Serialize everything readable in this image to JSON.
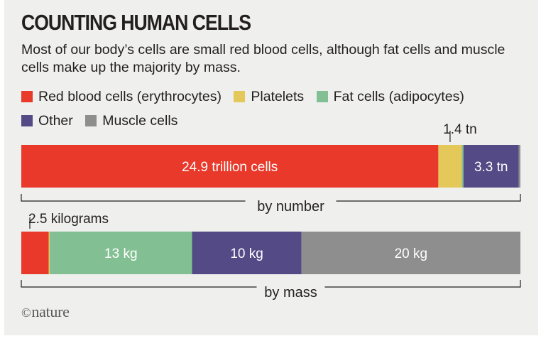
{
  "header": {
    "title": "COUNTING HUMAN CELLS",
    "subtitle": "Most of our body’s cells are small red blood cells, although fat cells and muscle cells make up the majority by mass."
  },
  "legend": {
    "items": [
      {
        "label": "Red blood cells (erythrocytes)",
        "color": "#e8392b"
      },
      {
        "label": "Platelets",
        "color": "#e4c85a"
      },
      {
        "label": "Fat cells (adipocytes)",
        "color": "#82bf93"
      },
      {
        "label": "Other",
        "color": "#544a86"
      },
      {
        "label": "Muscle cells",
        "color": "#8e8e8e"
      }
    ]
  },
  "chart_data": [
    {
      "type": "bar",
      "orientation": "horizontal-stacked",
      "axis_label": "by number",
      "units": "trillion cells",
      "series": [
        {
          "name": "Red blood cells (erythrocytes)",
          "value": 24.9,
          "label": "24.9 trillion cells"
        },
        {
          "name": "Platelets",
          "value": 1.4,
          "label": "1.4 tn"
        },
        {
          "name": "Fat cells (adipocytes)",
          "value": 0.1,
          "label": ""
        },
        {
          "name": "Other",
          "value": 3.3,
          "label": "3.3 tn"
        },
        {
          "name": "Muscle cells",
          "value": 0.1,
          "label": ""
        }
      ]
    },
    {
      "type": "bar",
      "orientation": "horizontal-stacked",
      "axis_label": "by mass",
      "units": "kg",
      "series": [
        {
          "name": "Red blood cells (erythrocytes)",
          "value": 2.5,
          "label": "2.5 kilograms"
        },
        {
          "name": "Platelets",
          "value": 0.1,
          "label": ""
        },
        {
          "name": "Fat cells (adipocytes)",
          "value": 13,
          "label": "13 kg"
        },
        {
          "name": "Other",
          "value": 10,
          "label": "10 kg"
        },
        {
          "name": "Muscle cells",
          "value": 20,
          "label": "20 kg"
        }
      ]
    }
  ],
  "footer": {
    "copyright_symbol": "©",
    "publisher": "nature"
  }
}
